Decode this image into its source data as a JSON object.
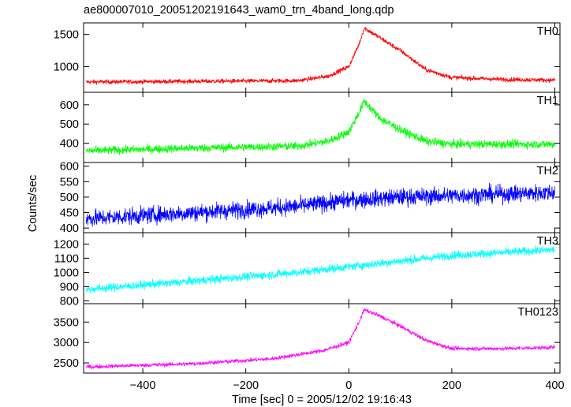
{
  "title": "ae800007010_20051202191643_wam0_trn_4band_long.qdp",
  "chart_data": {
    "type": "line",
    "title": "ae800007010_20051202191643_wam0_trn_4band_long.qdp",
    "xlabel": "Time [sec] 0 = 2005/12/02 19:16:43",
    "ylabel": "Counts/sec",
    "xlim": [
      -515,
      410
    ],
    "x_ticks": [
      -400,
      -200,
      0,
      200,
      400
    ],
    "x_tick_labels": [
      "−400",
      "−200",
      "0",
      "200",
      "400"
    ],
    "grid": false,
    "panels": [
      {
        "name": "TH0",
        "color": "#ff0000",
        "ylim": [
          600,
          1680
        ],
        "y_ticks": [
          1000,
          1500
        ],
        "y_tick_labels": [
          "1000",
          "1500"
        ],
        "profile": [
          [
            -510,
            760
          ],
          [
            -300,
            770
          ],
          [
            -100,
            780
          ],
          [
            -40,
            850
          ],
          [
            0,
            1000
          ],
          [
            20,
            1350
          ],
          [
            30,
            1600
          ],
          [
            60,
            1450
          ],
          [
            100,
            1250
          ],
          [
            150,
            950
          ],
          [
            200,
            830
          ],
          [
            300,
            800
          ],
          [
            400,
            790
          ]
        ],
        "noise": 35
      },
      {
        "name": "TH1",
        "color": "#00ff00",
        "ylim": [
          300,
          665
        ],
        "y_ticks": [
          400,
          500,
          600
        ],
        "y_tick_labels": [
          "400",
          "500",
          "600"
        ],
        "profile": [
          [
            -510,
            360
          ],
          [
            -300,
            375
          ],
          [
            -100,
            385
          ],
          [
            -40,
            410
          ],
          [
            0,
            460
          ],
          [
            20,
            560
          ],
          [
            30,
            620
          ],
          [
            60,
            530
          ],
          [
            100,
            470
          ],
          [
            150,
            410
          ],
          [
            200,
            395
          ],
          [
            300,
            395
          ],
          [
            400,
            395
          ]
        ],
        "noise": 22
      },
      {
        "name": "TH2",
        "color": "#0000ff",
        "ylim": [
          385,
          612
        ],
        "y_ticks": [
          400,
          450,
          500,
          550,
          600
        ],
        "y_tick_labels": [
          "400",
          "450",
          "500",
          "550",
          "600"
        ],
        "profile": [
          [
            -510,
            430
          ],
          [
            -300,
            450
          ],
          [
            -100,
            470
          ],
          [
            0,
            490
          ],
          [
            100,
            500
          ],
          [
            200,
            505
          ],
          [
            300,
            510
          ],
          [
            400,
            515
          ]
        ],
        "noise": 28
      },
      {
        "name": "TH3",
        "color": "#00ffff",
        "ylim": [
          780,
          1280
        ],
        "y_ticks": [
          800,
          900,
          1000,
          1100,
          1200
        ],
        "y_tick_labels": [
          "800",
          "900",
          "1000",
          "1100",
          "1200"
        ],
        "profile": [
          [
            -510,
            880
          ],
          [
            -300,
            940
          ],
          [
            -100,
            1000
          ],
          [
            0,
            1040
          ],
          [
            100,
            1080
          ],
          [
            200,
            1120
          ],
          [
            300,
            1140
          ],
          [
            400,
            1160
          ]
        ],
        "noise": 30
      },
      {
        "name": "TH0123",
        "color": "#ff00ff",
        "ylim": [
          2250,
          3950
        ],
        "y_ticks": [
          2500,
          3000,
          3500
        ],
        "y_tick_labels": [
          "2500",
          "3000",
          "3500"
        ],
        "profile": [
          [
            -510,
            2400
          ],
          [
            -300,
            2480
          ],
          [
            -150,
            2600
          ],
          [
            -50,
            2800
          ],
          [
            0,
            3000
          ],
          [
            20,
            3500
          ],
          [
            30,
            3800
          ],
          [
            60,
            3650
          ],
          [
            100,
            3400
          ],
          [
            150,
            3050
          ],
          [
            200,
            2850
          ],
          [
            300,
            2850
          ],
          [
            400,
            2880
          ]
        ],
        "noise": 50
      }
    ]
  }
}
